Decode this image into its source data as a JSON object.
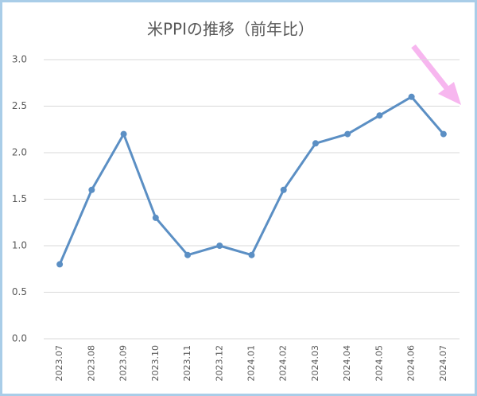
{
  "chart_data": {
    "type": "line",
    "title": "米PPIの推移（前年比）",
    "categories": [
      "2023.07",
      "2023.08",
      "2023.09",
      "2023.10",
      "2023.11",
      "2023.12",
      "2024.01",
      "2024.02",
      "2024.03",
      "2024.04",
      "2024.05",
      "2024.06",
      "2024.07"
    ],
    "values": [
      0.8,
      1.6,
      2.2,
      1.3,
      0.9,
      1.0,
      0.9,
      1.6,
      2.1,
      2.2,
      2.4,
      2.6,
      2.2
    ],
    "color": "#5b8fc4",
    "ylim": [
      0,
      3
    ],
    "yticks": [
      {
        "value": 0,
        "label": "0.0"
      },
      0.5,
      {
        "value": 1,
        "label": "1.0"
      },
      1.5,
      {
        "value": 2,
        "label": "2.0"
      },
      2.5,
      {
        "value": 3,
        "label": "3.0"
      }
    ],
    "grid": true
  }
}
